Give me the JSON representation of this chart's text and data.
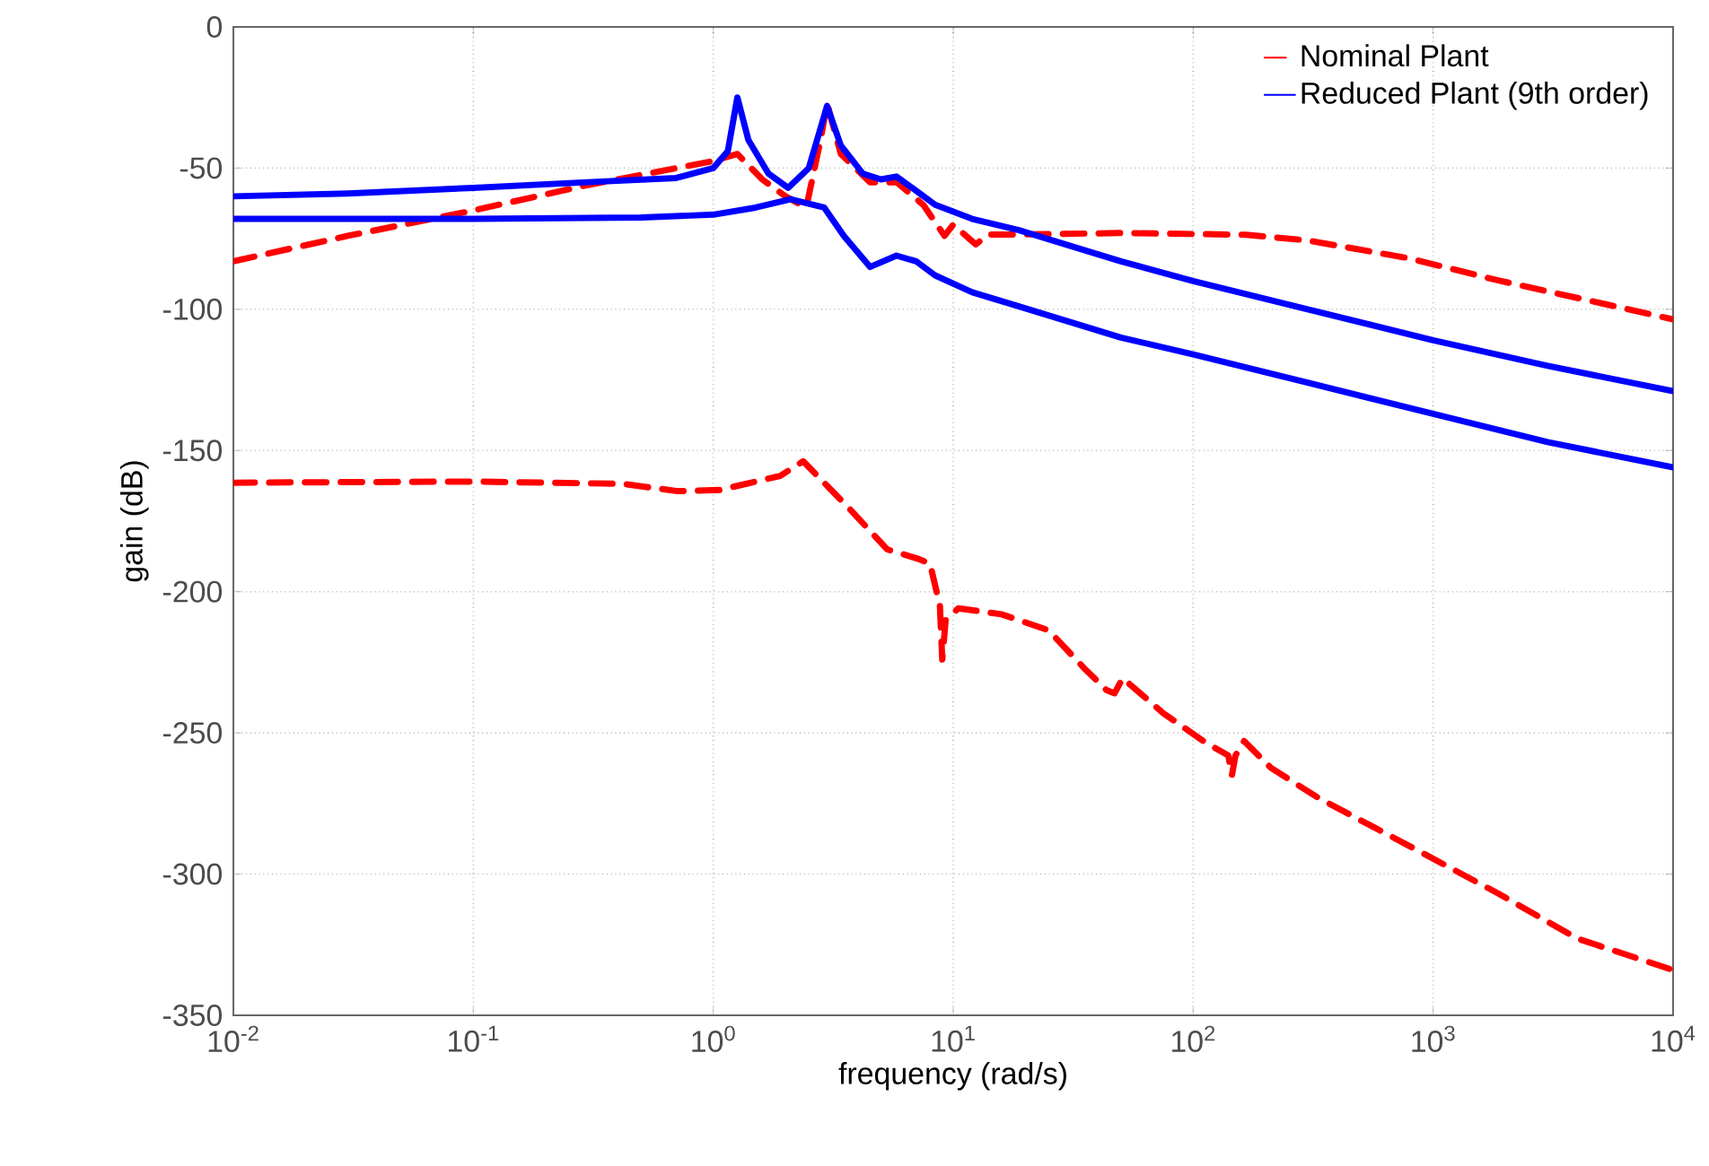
{
  "chart_data": {
    "type": "line",
    "xlabel": "frequency (rad/s)",
    "ylabel": "gain (dB)",
    "log": "x",
    "grid": true,
    "legend": "top right",
    "marker": "none",
    "xlim": [
      0.01,
      10000
    ],
    "ylim": [
      -350,
      0
    ],
    "xticks": [
      {
        "value": 0.01,
        "label": "10$^{-2}$"
      },
      {
        "value": 0.1,
        "label": "10$^{-1}$"
      },
      {
        "value": 1,
        "label": "10$^{0}$"
      },
      {
        "value": 10,
        "label": "10$^{1}$"
      },
      {
        "value": 100,
        "label": "10$^{2}$"
      },
      {
        "value": 1000,
        "label": "10$^{3}$"
      },
      {
        "value": 10000,
        "label": "10$^{4}$"
      }
    ],
    "yticks": [
      -350,
      -300,
      -250,
      -200,
      -150,
      -100,
      -50,
      0
    ],
    "series": [
      {
        "name": "Nominal Plant",
        "color": "#ff0000",
        "line_style": "dashed",
        "x": [
          0.01,
          0.03,
          0.1,
          0.3,
          1,
          1.26,
          1.6,
          2.0,
          2.44,
          2.8,
          2.98,
          3.4,
          4.5,
          5.8,
          7.5,
          9.2,
          10,
          12.4,
          14,
          18.8,
          50,
          166,
          299,
          800,
          1870,
          5300,
          10000
        ],
        "values": [
          -83,
          -74,
          -65,
          -56,
          -47.5,
          -45,
          -54,
          -60,
          -64,
          -40,
          -27,
          -45,
          -55,
          -55,
          -63,
          -74,
          -70,
          -77,
          -73.5,
          -73.5,
          -73,
          -73.6,
          -75.6,
          -82,
          -89.8,
          -98.3,
          -103.6
        ]
      },
      {
        "color": "#ff0000",
        "line_style": "dashed",
        "x": [
          0.01,
          0.1,
          0.42,
          0.71,
          1.06,
          1.9,
          2.37,
          3.76,
          5.3,
          7.1,
          8.0,
          8.8,
          9.0,
          9.3,
          10.5,
          15.9,
          25,
          35.5,
          43.6,
          47,
          50.8,
          75,
          112,
          140,
          145,
          150,
          163,
          211,
          332,
          794,
          1870,
          3980,
          10000
        ],
        "values": [
          -161.4,
          -161,
          -161.8,
          -164.4,
          -164,
          -159,
          -153.8,
          -171.3,
          -185,
          -188.3,
          -190,
          -205,
          -224,
          -210,
          -205.9,
          -208,
          -213.7,
          -227.5,
          -234.9,
          -236,
          -230.6,
          -243,
          -253.3,
          -258,
          -265,
          -258,
          -252.9,
          -262.4,
          -273,
          -290,
          -306.9,
          -322.8,
          -334
        ]
      },
      {
        "name": "Reduced Plant (9th order)",
        "color": "#0000ff",
        "line_style": "solid",
        "x": [
          0.01,
          0.03,
          0.1,
          0.3,
          0.7,
          1.0,
          1.15,
          1.26,
          1.4,
          1.7,
          2.05,
          2.5,
          2.98,
          3.4,
          4.2,
          5.0,
          5.8,
          7,
          8.4,
          12,
          18.8,
          50,
          100,
          300,
          1000,
          3000,
          10000
        ],
        "values": [
          -60,
          -59,
          -57,
          -55,
          -53.5,
          -50,
          -44,
          -25,
          -40,
          -52,
          -57,
          -50,
          -28,
          -42,
          -52,
          -54,
          -53,
          -58,
          -63,
          -68,
          -72,
          -83,
          -90,
          -100,
          -111,
          -120,
          -129
        ]
      },
      {
        "color": "#0000ff",
        "line_style": "solid",
        "x": [
          0.01,
          0.1,
          0.5,
          1,
          1.5,
          2.1,
          2.9,
          3.5,
          4.5,
          5.8,
          7,
          8.4,
          12,
          18.8,
          50,
          100,
          300,
          1000,
          3000,
          10000
        ],
        "values": [
          -68,
          -68,
          -67.5,
          -66.5,
          -64,
          -61,
          -64,
          -74,
          -85,
          -81,
          -83,
          -88,
          -94,
          -99,
          -110,
          -116,
          -126,
          -137,
          -147,
          -156
        ]
      }
    ]
  }
}
